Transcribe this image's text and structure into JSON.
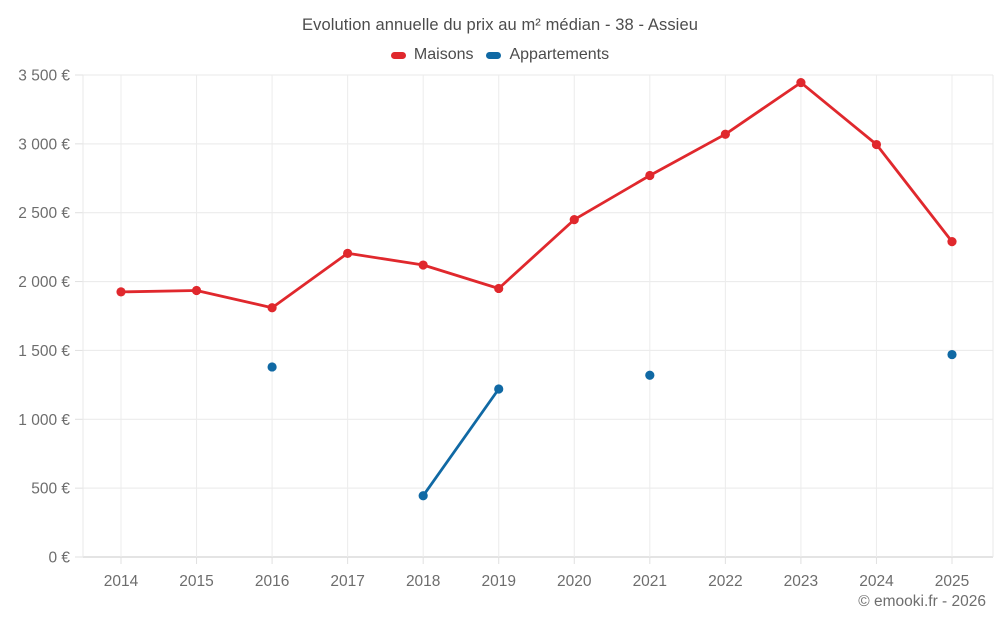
{
  "chart": {
    "title": "Evolution annuelle du prix au m² médian - 38 - Assieu",
    "legend": [
      {
        "label": "Maisons",
        "color": "#e0282d"
      },
      {
        "label": "Appartements",
        "color": "#1069a4"
      }
    ]
  },
  "footer": {
    "copyright": "© emooki.fr - 2026"
  },
  "chart_data": {
    "type": "line",
    "title": "Evolution annuelle du prix au m² médian - 38 - Assieu",
    "categories": [
      "2014",
      "2015",
      "2016",
      "2017",
      "2018",
      "2019",
      "2020",
      "2021",
      "2022",
      "2023",
      "2024",
      "2025"
    ],
    "series": [
      {
        "name": "Maisons",
        "color": "#e0282d",
        "values": [
          1925,
          1935,
          1810,
          2205,
          2120,
          1950,
          2450,
          2770,
          3070,
          3445,
          2995,
          2290
        ]
      },
      {
        "name": "Appartements",
        "color": "#1069a4",
        "values": [
          null,
          null,
          1380,
          null,
          445,
          1220,
          null,
          1320,
          null,
          null,
          null,
          1470
        ]
      }
    ],
    "xlabel": "",
    "ylabel": "",
    "ylim": [
      0,
      3500
    ],
    "ytick_step": 500,
    "ytick_suffix": " €",
    "grid": true,
    "legend_position": "top",
    "gap_policy": "break-line-on-null"
  }
}
